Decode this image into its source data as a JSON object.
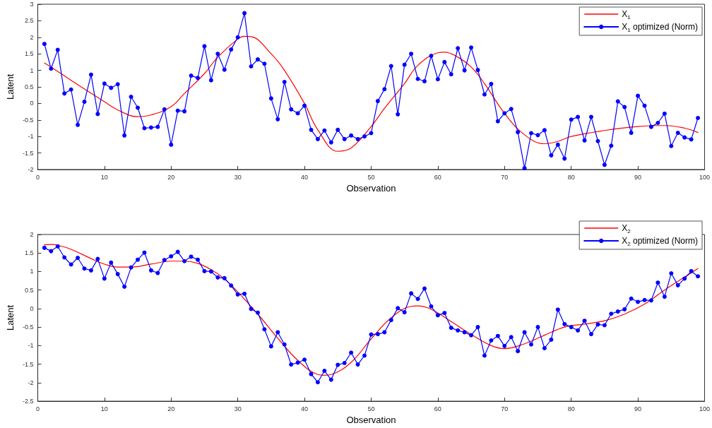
{
  "chart_data": [
    {
      "type": "line",
      "xlabel": "Observation",
      "ylabel": "Latent",
      "xlim": [
        0,
        100
      ],
      "xticks": [
        0,
        10,
        20,
        30,
        40,
        50,
        60,
        70,
        80,
        90,
        100
      ],
      "ylim": [
        -2,
        3
      ],
      "yticks": [
        -2,
        -1.5,
        -1,
        -0.5,
        0,
        0.5,
        1,
        1.5,
        2,
        2.5,
        3
      ],
      "grid": false,
      "legend": "top right",
      "marker": "circle",
      "line_style": "solid",
      "x": [
        1,
        2,
        3,
        4,
        5,
        6,
        7,
        8,
        9,
        10,
        11,
        12,
        13,
        14,
        15,
        16,
        17,
        18,
        19,
        20,
        21,
        22,
        23,
        24,
        25,
        26,
        27,
        28,
        29,
        30,
        31,
        32,
        33,
        34,
        35,
        36,
        37,
        38,
        39,
        40,
        41,
        42,
        43,
        44,
        45,
        46,
        47,
        48,
        49,
        50,
        51,
        52,
        53,
        54,
        55,
        56,
        57,
        58,
        59,
        60,
        61,
        62,
        63,
        64,
        65,
        66,
        67,
        68,
        69,
        70,
        71,
        72,
        73,
        74,
        75,
        76,
        77,
        78,
        79,
        80,
        81,
        82,
        83,
        84,
        85,
        86,
        87,
        88,
        89,
        90,
        91,
        92,
        93,
        94,
        95,
        96,
        97,
        98,
        99
      ],
      "series": [
        {
          "name": "X$_{1}$",
          "color": "#ff0000",
          "marker": "none",
          "x": [
            1,
            2,
            5,
            10,
            12,
            15,
            17,
            20,
            22,
            25,
            27,
            30,
            31,
            32,
            35,
            37,
            40,
            42,
            45,
            47,
            50,
            52,
            55,
            57,
            60,
            61,
            63,
            65,
            67,
            70,
            73,
            76,
            78,
            80,
            85,
            90,
            94,
            97,
            99
          ],
          "values": [
            1.22,
            1.1,
            0.7,
            0.05,
            -0.2,
            -0.4,
            -0.35,
            -0.1,
            0.3,
            0.9,
            1.4,
            1.95,
            2.03,
            2.02,
            1.5,
            1.0,
            0.0,
            -0.8,
            -1.45,
            -1.35,
            -0.7,
            -0.15,
            0.6,
            1.15,
            1.53,
            1.55,
            1.4,
            1.1,
            0.6,
            -0.3,
            -0.95,
            -1.22,
            -1.15,
            -1.0,
            -0.82,
            -0.7,
            -0.67,
            -0.75,
            -0.88
          ]
        },
        {
          "name": "X$_{1}$ optimized (Norm)",
          "color": "#0000ff",
          "values": [
            1.8,
            1.05,
            1.62,
            0.3,
            0.42,
            -0.65,
            0.05,
            0.87,
            -0.32,
            0.6,
            0.47,
            0.58,
            -0.97,
            0.2,
            -0.13,
            -0.75,
            -0.73,
            -0.71,
            -0.18,
            -1.25,
            -0.22,
            -0.24,
            0.84,
            0.77,
            1.73,
            0.7,
            1.5,
            1.02,
            1.63,
            2.0,
            2.73,
            1.12,
            1.33,
            1.2,
            0.15,
            -0.48,
            0.65,
            -0.18,
            -0.3,
            -0.07,
            -0.8,
            -1.08,
            -0.82,
            -1.18,
            -0.8,
            -1.08,
            -0.97,
            -1.08,
            -1.0,
            -0.9,
            0.07,
            0.43,
            1.13,
            -0.33,
            1.17,
            1.5,
            0.74,
            0.67,
            1.44,
            0.73,
            1.25,
            0.88,
            1.67,
            1.0,
            1.69,
            1.01,
            0.27,
            0.59,
            -0.54,
            -0.3,
            -0.17,
            -0.87,
            -1.96,
            -0.9,
            -0.96,
            -0.81,
            -1.57,
            -1.25,
            -1.67,
            -0.49,
            -0.41,
            -1.12,
            -0.41,
            -1.14,
            -1.86,
            -1.28,
            0.06,
            -0.11,
            -0.89,
            0.23,
            -0.07,
            -0.71,
            -0.59,
            -0.31,
            -1.29,
            -0.89,
            -1.03,
            -1.09,
            -0.44
          ]
        }
      ]
    },
    {
      "type": "line",
      "xlabel": "Observation",
      "ylabel": "Latent",
      "xlim": [
        0,
        100
      ],
      "xticks": [
        0,
        10,
        20,
        30,
        40,
        50,
        60,
        70,
        80,
        90,
        100
      ],
      "ylim": [
        -2.5,
        2
      ],
      "yticks": [
        -2.5,
        -2,
        -1.5,
        -1,
        -0.5,
        0,
        0.5,
        1,
        1.5,
        2
      ],
      "grid": false,
      "legend": "top right",
      "marker": "circle",
      "line_style": "solid",
      "x": [
        1,
        2,
        3,
        4,
        5,
        6,
        7,
        8,
        9,
        10,
        11,
        12,
        13,
        14,
        15,
        16,
        17,
        18,
        19,
        20,
        21,
        22,
        23,
        24,
        25,
        26,
        27,
        28,
        29,
        30,
        31,
        32,
        33,
        34,
        35,
        36,
        37,
        38,
        39,
        40,
        41,
        42,
        43,
        44,
        45,
        46,
        47,
        48,
        49,
        50,
        51,
        52,
        53,
        54,
        55,
        56,
        57,
        58,
        59,
        60,
        61,
        62,
        63,
        64,
        65,
        66,
        67,
        68,
        69,
        70,
        71,
        72,
        73,
        74,
        75,
        76,
        77,
        78,
        79,
        80,
        81,
        82,
        83,
        84,
        85,
        86,
        87,
        88,
        89,
        90,
        91,
        92,
        93,
        94,
        95,
        96,
        97,
        98,
        99
      ],
      "series": [
        {
          "name": "X$_{2}$",
          "color": "#ff0000",
          "marker": "none",
          "x": [
            1,
            2,
            3,
            5,
            8,
            10,
            12,
            14,
            17,
            20,
            22,
            24,
            26,
            28,
            30,
            33,
            36,
            39,
            42,
            43,
            44,
            47,
            50,
            53,
            56,
            57,
            59,
            62,
            65,
            68,
            70,
            73,
            76,
            79,
            82,
            85,
            88,
            91,
            94,
            97,
            99
          ],
          "values": [
            1.72,
            1.73,
            1.71,
            1.6,
            1.35,
            1.2,
            1.12,
            1.12,
            1.2,
            1.28,
            1.28,
            1.22,
            1.05,
            0.8,
            0.45,
            -0.15,
            -0.8,
            -1.4,
            -1.78,
            -1.8,
            -1.78,
            -1.45,
            -0.82,
            -0.25,
            0.06,
            0.07,
            -0.02,
            -0.35,
            -0.7,
            -1.0,
            -1.08,
            -0.95,
            -0.72,
            -0.5,
            -0.42,
            -0.33,
            -0.15,
            0.12,
            0.5,
            0.85,
            1.08
          ]
        },
        {
          "name": "X$_{2}$ optimized (Norm)",
          "color": "#0000ff",
          "values": [
            1.64,
            1.55,
            1.68,
            1.38,
            1.19,
            1.37,
            1.08,
            1.03,
            1.34,
            0.81,
            1.24,
            0.93,
            0.59,
            1.11,
            1.32,
            1.51,
            1.03,
            0.96,
            1.31,
            1.41,
            1.53,
            1.28,
            1.4,
            1.32,
            1.01,
            1.0,
            0.84,
            0.82,
            0.62,
            0.38,
            0.4,
            -0.01,
            -0.11,
            -0.56,
            -1.02,
            -0.64,
            -0.97,
            -1.51,
            -1.46,
            -1.38,
            -1.77,
            -1.99,
            -1.68,
            -1.92,
            -1.52,
            -1.47,
            -1.19,
            -1.51,
            -1.27,
            -0.7,
            -0.69,
            -0.64,
            -0.31,
            0.01,
            -0.1,
            0.41,
            0.26,
            0.54,
            0.06,
            -0.18,
            -0.12,
            -0.52,
            -0.59,
            -0.64,
            -0.72,
            -0.5,
            -1.27,
            -0.86,
            -0.74,
            -1.01,
            -0.77,
            -1.15,
            -0.64,
            -0.97,
            -0.5,
            -1.07,
            -0.84,
            -0.03,
            -0.42,
            -0.5,
            -0.59,
            -0.33,
            -0.69,
            -0.43,
            -0.45,
            -0.14,
            -0.08,
            -0.02,
            0.27,
            0.18,
            0.23,
            0.22,
            0.7,
            0.32,
            0.95,
            0.63,
            0.81,
            1.01,
            0.87
          ]
        }
      ]
    }
  ]
}
